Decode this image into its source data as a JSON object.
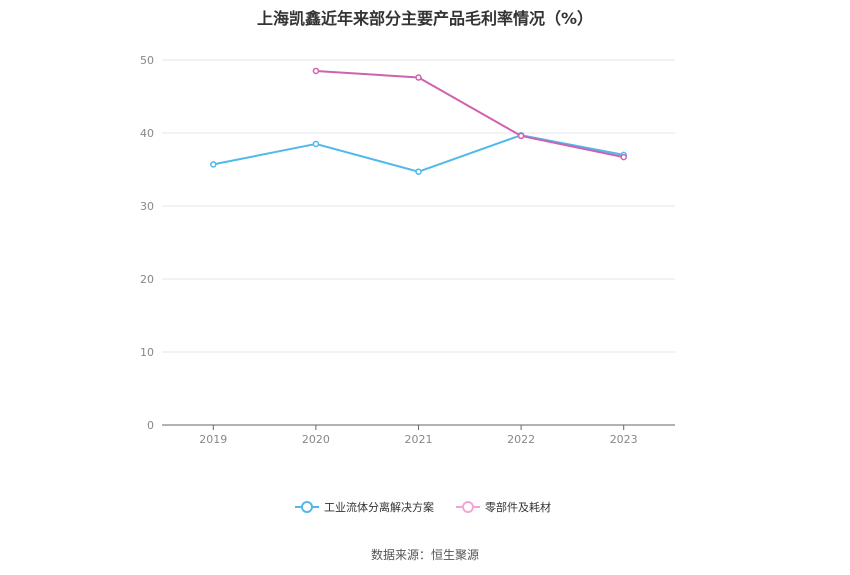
{
  "chart_data": {
    "type": "line",
    "title": "上海凯鑫近年来部分主要产品毛利率情况（%）",
    "categories": [
      "2019",
      "2020",
      "2021",
      "2022",
      "2023"
    ],
    "ylim": [
      0,
      50
    ],
    "yticks": [
      0,
      10,
      20,
      30,
      40,
      50
    ],
    "grid": true,
    "legend_position": "bottom-center",
    "series": [
      {
        "name": "工业流体分离解决方案",
        "color": "#4fb8ec",
        "values": [
          35.7,
          38.5,
          34.7,
          39.7,
          37.0
        ]
      },
      {
        "name": "零部件及耗材",
        "color": "#cf62b0",
        "values": [
          null,
          48.5,
          47.6,
          39.6,
          36.7
        ]
      }
    ]
  },
  "source": "数据来源：恒生聚源"
}
